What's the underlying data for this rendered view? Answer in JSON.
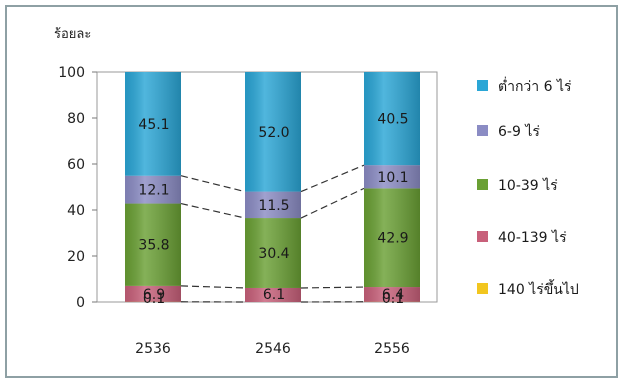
{
  "chart_data": {
    "type": "bar",
    "stacked": true,
    "percent_stacked": true,
    "ylabel": "ร้อยละ",
    "ylim": [
      0,
      100
    ],
    "yticks": [
      0,
      20,
      40,
      60,
      80,
      100
    ],
    "categories": [
      "2536",
      "2546",
      "2556"
    ],
    "series": [
      {
        "name": "140 ไร่ขึ้นไป",
        "color": "#f2c61f",
        "values": [
          0.1,
          0.0,
          0.1
        ],
        "labels": [
          "0.1",
          "",
          "0.1"
        ]
      },
      {
        "name": "40-139 ไร่",
        "color": "#c8607a",
        "values": [
          6.9,
          6.1,
          6.4
        ],
        "labels": [
          "6.9",
          "6.1",
          "6.4"
        ]
      },
      {
        "name": "10-39 ไร่",
        "color": "#6aa034",
        "values": [
          35.8,
          30.4,
          42.9
        ],
        "labels": [
          "35.8",
          "30.4",
          "42.9"
        ]
      },
      {
        "name": "6-9 ไร่",
        "color": "#8b8cc4",
        "values": [
          12.1,
          11.5,
          10.1
        ],
        "labels": [
          "12.1",
          "11.5",
          "10.1"
        ]
      },
      {
        "name": "ต่ำกว่า 6 ไร่",
        "color": "#2aa6d6",
        "values": [
          45.1,
          52.0,
          40.5
        ],
        "labels": [
          "45.1",
          "52.0",
          "40.5"
        ]
      }
    ],
    "legend_position": "right",
    "connector_lines": "dashed",
    "grid": false
  }
}
